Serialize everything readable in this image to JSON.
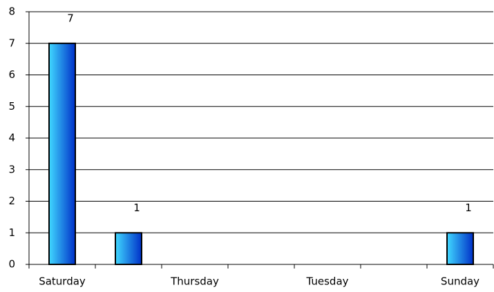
{
  "chart_data": {
    "type": "bar",
    "categories": [
      "Saturday",
      null,
      "Thursday",
      null,
      "Tuesday",
      null,
      "Sunday"
    ],
    "values": [
      7,
      1,
      null,
      null,
      null,
      null,
      1
    ],
    "gradient": [
      "#40d8ff",
      "#0030c8"
    ],
    "ylim": [
      0,
      8
    ],
    "yticks": [
      0,
      1,
      2,
      3,
      4,
      5,
      6,
      7,
      8
    ],
    "grid": true
  }
}
